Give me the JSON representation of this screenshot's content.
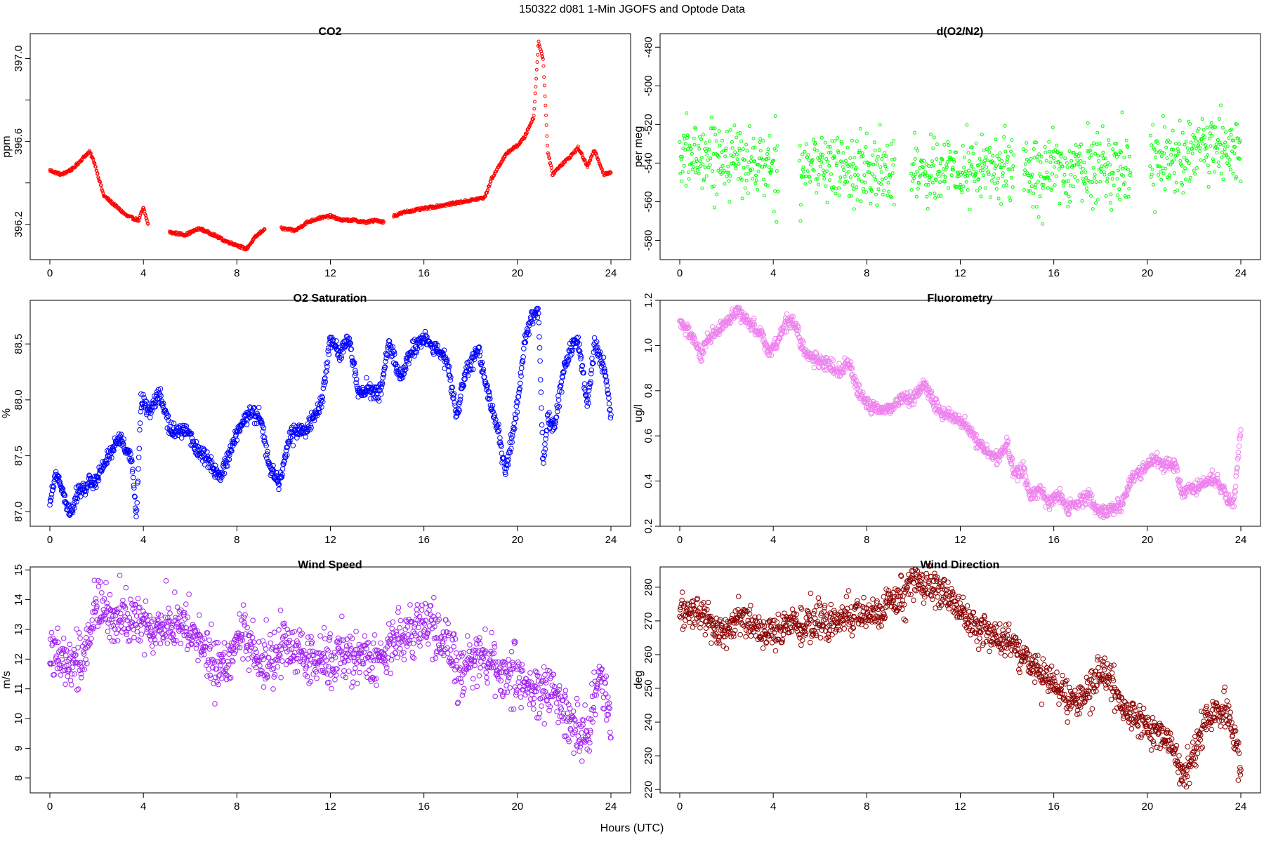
{
  "suptitle": "150322   d081   1-Min  JGOFS and Optode Data",
  "xlabel": "Hours (UTC)",
  "chart_data": [
    {
      "type": "scatter",
      "title": "CO2",
      "ylabel": "ppm",
      "color": "#ff0000",
      "xlim": [
        0,
        24
      ],
      "xticks": [
        0,
        4,
        8,
        12,
        16,
        20,
        24
      ],
      "ylim": [
        396.03,
        397.12
      ],
      "yticks": [
        396.2,
        396.6,
        397.0
      ],
      "yminor": [
        396.4,
        396.8
      ],
      "ytick_labels": [
        "396.2",
        "396.6",
        "397.0"
      ],
      "point_size": "small",
      "gaps": [
        [
          4.2,
          5.1
        ],
        [
          9.2,
          9.9
        ],
        [
          14.3,
          14.7
        ]
      ],
      "series": [
        {
          "name": "",
          "x": [
            0,
            0.5,
            1,
            1.5,
            1.7,
            1.9,
            2.3,
            2.8,
            3.3,
            3.8,
            4.0,
            4.2,
            5.2,
            5.8,
            6.4,
            7.0,
            7.5,
            8.0,
            8.4,
            8.8,
            9.2,
            9.9,
            10.5,
            11.0,
            11.5,
            12.0,
            12.5,
            13.0,
            13.5,
            14.0,
            14.3,
            14.7,
            15.2,
            15.7,
            16.2,
            16.7,
            17.2,
            17.7,
            18.2,
            18.6,
            18.9,
            19.3,
            19.6,
            20.0,
            20.3,
            20.7,
            20.9,
            21.1,
            21.3,
            21.5,
            21.8,
            22.2,
            22.6,
            23.0,
            23.3,
            23.7,
            24.0
          ],
          "y": [
            396.46,
            396.44,
            396.47,
            396.53,
            396.55,
            396.5,
            396.34,
            396.29,
            396.24,
            396.22,
            396.28,
            396.2,
            396.16,
            396.15,
            396.18,
            396.15,
            396.12,
            396.1,
            396.08,
            396.14,
            396.18,
            396.18,
            396.17,
            396.21,
            396.23,
            396.24,
            396.22,
            396.22,
            396.21,
            396.22,
            396.21,
            396.24,
            396.26,
            396.27,
            396.28,
            396.29,
            396.3,
            396.31,
            396.32,
            396.33,
            396.42,
            396.5,
            396.55,
            396.58,
            396.62,
            396.72,
            397.08,
            397.0,
            396.55,
            396.44,
            396.48,
            396.52,
            396.57,
            396.48,
            396.56,
            396.44,
            396.45
          ]
        }
      ]
    },
    {
      "type": "scatter",
      "title": "d(O2/N2)",
      "ylabel": "per meg",
      "color": "#00ff00",
      "xlim": [
        0,
        24
      ],
      "xticks": [
        0,
        4,
        8,
        12,
        16,
        20,
        24
      ],
      "ylim": [
        -590,
        -473
      ],
      "yticks": [
        -480,
        -500,
        -520,
        -540,
        -560,
        -580
      ],
      "ytick_labels": [
        "-480",
        "-500",
        "-520",
        "-540",
        "-560",
        "-580"
      ],
      "point_size": "small",
      "gaps": [
        [
          4.2,
          5.1
        ],
        [
          9.2,
          9.9
        ],
        [
          14.3,
          14.7
        ],
        [
          19.3,
          20.1
        ]
      ],
      "series": [
        {
          "name": "",
          "x": [
            0,
            1,
            2,
            3,
            4,
            4.2,
            5.2,
            6,
            7,
            8,
            9,
            9.2,
            9.9,
            11,
            12,
            13,
            14,
            14.3,
            14.7,
            15.5,
            16.5,
            17.5,
            18.5,
            19.3,
            20.1,
            21,
            22,
            23,
            24
          ],
          "y": [
            -538,
            -535,
            -537,
            -540,
            -542,
            -540,
            -541,
            -541,
            -543,
            -545,
            -544,
            -543,
            -543,
            -544,
            -545,
            -543,
            -543,
            -543,
            -543,
            -544,
            -544,
            -542,
            -542,
            -542,
            -537,
            -537,
            -536,
            -533,
            -534
          ],
          "noise": 9
        }
      ]
    },
    {
      "type": "scatter",
      "title": "O2 Saturation",
      "ylabel": "%",
      "color": "#0000ff",
      "xlim": [
        0,
        24
      ],
      "xticks": [
        0,
        4,
        8,
        12,
        16,
        20,
        24
      ],
      "ylim": [
        86.87,
        88.89
      ],
      "yticks": [
        87.0,
        87.5,
        88.0,
        88.5
      ],
      "ytick_labels": [
        "87.0",
        "87.5",
        "88.0",
        "88.5"
      ],
      "point_size": "large",
      "series": [
        {
          "name": "",
          "x": [
            0,
            0.3,
            0.6,
            0.9,
            1.2,
            1.5,
            2.0,
            2.5,
            3.0,
            3.5,
            3.7,
            3.9,
            4.2,
            4.7,
            5.2,
            5.8,
            6.3,
            6.8,
            7.3,
            8.0,
            8.6,
            9.0,
            9.4,
            9.8,
            10.3,
            11.0,
            11.6,
            12.0,
            12.4,
            12.8,
            13.2,
            13.7,
            14.1,
            14.5,
            15.0,
            15.5,
            16.0,
            16.5,
            17.0,
            17.4,
            17.8,
            18.3,
            18.8,
            19.2,
            19.5,
            19.8,
            20.0,
            20.3,
            20.6,
            20.9,
            21.1,
            21.3,
            21.6,
            21.9,
            22.2,
            22.6,
            23.0,
            23.3,
            23.7,
            24.0
          ],
          "y": [
            87.1,
            87.35,
            87.15,
            86.98,
            87.2,
            87.2,
            87.3,
            87.5,
            87.65,
            87.45,
            86.95,
            88.0,
            87.9,
            88.05,
            87.7,
            87.75,
            87.55,
            87.45,
            87.3,
            87.7,
            87.9,
            87.85,
            87.4,
            87.25,
            87.7,
            87.75,
            87.95,
            88.55,
            88.4,
            88.55,
            88.05,
            88.1,
            88.05,
            88.5,
            88.2,
            88.45,
            88.55,
            88.45,
            88.35,
            87.85,
            88.25,
            88.45,
            88.0,
            87.7,
            87.35,
            87.7,
            87.95,
            88.5,
            88.75,
            88.8,
            87.4,
            87.85,
            87.75,
            88.2,
            88.4,
            88.55,
            87.95,
            88.5,
            88.3,
            87.85
          ],
          "noise": 0.035
        }
      ]
    },
    {
      "type": "scatter",
      "title": "Fluorometry",
      "ylabel": "ug/l",
      "color": "#ee82ee",
      "xlim": [
        0,
        24
      ],
      "xticks": [
        0,
        4,
        8,
        12,
        16,
        20,
        24
      ],
      "ylim": [
        0.2,
        1.2
      ],
      "yticks": [
        0.2,
        0.4,
        0.6,
        0.8,
        1.0,
        1.2
      ],
      "ytick_labels": [
        "0.2",
        "0.4",
        "0.6",
        "0.8",
        "1.0",
        "1.2"
      ],
      "point_size": "large",
      "series": [
        {
          "name": "",
          "x": [
            0,
            0.3,
            0.6,
            0.9,
            1.2,
            1.5,
            2.0,
            2.5,
            3.0,
            3.5,
            3.8,
            4.2,
            4.6,
            4.9,
            5.3,
            5.8,
            6.3,
            6.8,
            7.2,
            7.6,
            8.0,
            8.5,
            9.0,
            9.5,
            10.0,
            10.4,
            10.8,
            11.2,
            11.7,
            12.2,
            12.7,
            13.2,
            13.7,
            14.0,
            14.3,
            14.7,
            15.0,
            15.4,
            15.8,
            16.2,
            16.6,
            17.0,
            17.5,
            18.0,
            18.5,
            18.9,
            19.3,
            19.7,
            20.0,
            20.4,
            20.8,
            21.2,
            21.5,
            21.8,
            22.2,
            22.6,
            23.0,
            23.4,
            23.7,
            24.0
          ],
          "y": [
            1.1,
            1.07,
            1.03,
            0.95,
            1.02,
            1.05,
            1.1,
            1.15,
            1.1,
            1.05,
            0.97,
            1.02,
            1.12,
            1.1,
            0.98,
            0.93,
            0.92,
            0.88,
            0.93,
            0.8,
            0.74,
            0.72,
            0.72,
            0.77,
            0.76,
            0.84,
            0.76,
            0.7,
            0.68,
            0.65,
            0.58,
            0.52,
            0.5,
            0.58,
            0.43,
            0.45,
            0.33,
            0.37,
            0.3,
            0.34,
            0.28,
            0.3,
            0.33,
            0.25,
            0.28,
            0.3,
            0.4,
            0.44,
            0.47,
            0.5,
            0.46,
            0.47,
            0.34,
            0.37,
            0.37,
            0.4,
            0.4,
            0.33,
            0.3,
            0.63
          ],
          "noise": 0.015
        }
      ]
    },
    {
      "type": "scatter",
      "title": "Wind Speed",
      "ylabel": "m/s",
      "color": "#a020f0",
      "xlim": [
        0,
        24
      ],
      "xticks": [
        0,
        4,
        8,
        12,
        16,
        20,
        24
      ],
      "ylim": [
        7.5,
        15.1
      ],
      "yticks": [
        8,
        9,
        10,
        11,
        12,
        13,
        14,
        15
      ],
      "ytick_labels": [
        "8",
        "9",
        "10",
        "11",
        "12",
        "13",
        "14",
        "15"
      ],
      "point_size": "large",
      "series": [
        {
          "name": "",
          "x": [
            0,
            0.5,
            1.0,
            1.5,
            1.7,
            2.0,
            2.5,
            3.0,
            3.5,
            4.0,
            4.5,
            5.0,
            5.5,
            6.0,
            6.5,
            7.0,
            7.5,
            8.0,
            8.5,
            9.0,
            9.5,
            10.0,
            10.5,
            11.0,
            11.5,
            12.0,
            12.5,
            13.0,
            13.5,
            14.0,
            14.5,
            15.0,
            15.5,
            16.0,
            16.5,
            17.0,
            17.5,
            18.0,
            18.5,
            19.0,
            19.5,
            20.0,
            20.5,
            21.0,
            21.5,
            22.0,
            22.5,
            23.0,
            23.5,
            24.0
          ],
          "y": [
            12.2,
            12.3,
            11.9,
            12.0,
            12.8,
            13.8,
            13.4,
            13.5,
            13.3,
            13.1,
            13.0,
            13.2,
            13.1,
            13.0,
            12.5,
            11.8,
            11.7,
            12.8,
            12.4,
            12.0,
            11.8,
            12.5,
            12.3,
            12.0,
            11.9,
            12.0,
            12.2,
            12.1,
            12.0,
            11.9,
            12.5,
            12.8,
            13.0,
            13.2,
            12.8,
            12.5,
            11.5,
            12.2,
            12.0,
            11.8,
            11.3,
            11.5,
            11.0,
            10.8,
            11.0,
            10.0,
            9.5,
            9.3,
            11.5,
            10.0
          ],
          "noise": 0.45
        }
      ]
    },
    {
      "type": "scatter",
      "title": "Wind Direction",
      "ylabel": "deg",
      "color": "#8b0000",
      "xlim": [
        0,
        24
      ],
      "xticks": [
        0,
        4,
        8,
        12,
        16,
        20,
        24
      ],
      "ylim": [
        219,
        286
      ],
      "yticks": [
        220,
        230,
        240,
        250,
        260,
        270,
        280
      ],
      "ytick_labels": [
        "220",
        "230",
        "240",
        "250",
        "260",
        "270",
        "280"
      ],
      "point_size": "large",
      "series": [
        {
          "name": "",
          "x": [
            0,
            0.5,
            1.0,
            1.5,
            2.0,
            2.5,
            3.0,
            3.5,
            4.0,
            4.5,
            5.0,
            5.5,
            6.0,
            6.5,
            7.0,
            7.5,
            8.0,
            8.5,
            9.0,
            9.5,
            10.0,
            10.5,
            11.0,
            11.5,
            12.0,
            12.5,
            13.0,
            13.5,
            14.0,
            14.5,
            15.0,
            15.5,
            16.0,
            16.5,
            17.0,
            17.5,
            18.0,
            18.5,
            19.0,
            19.5,
            20.0,
            20.5,
            21.0,
            21.5,
            22.0,
            22.5,
            23.0,
            23.5,
            24.0
          ],
          "y": [
            272,
            273,
            272,
            268,
            266,
            271,
            270,
            266,
            266,
            269,
            268,
            269,
            270,
            269,
            272,
            272,
            272,
            273,
            276,
            277,
            283,
            279,
            280,
            278,
            273,
            270,
            267,
            266,
            263,
            261,
            258,
            254,
            251,
            249,
            247,
            248,
            255,
            252,
            243,
            242,
            238,
            236,
            234,
            224,
            230,
            240,
            243,
            242,
            226
          ],
          "noise": 2.5
        }
      ]
    }
  ]
}
